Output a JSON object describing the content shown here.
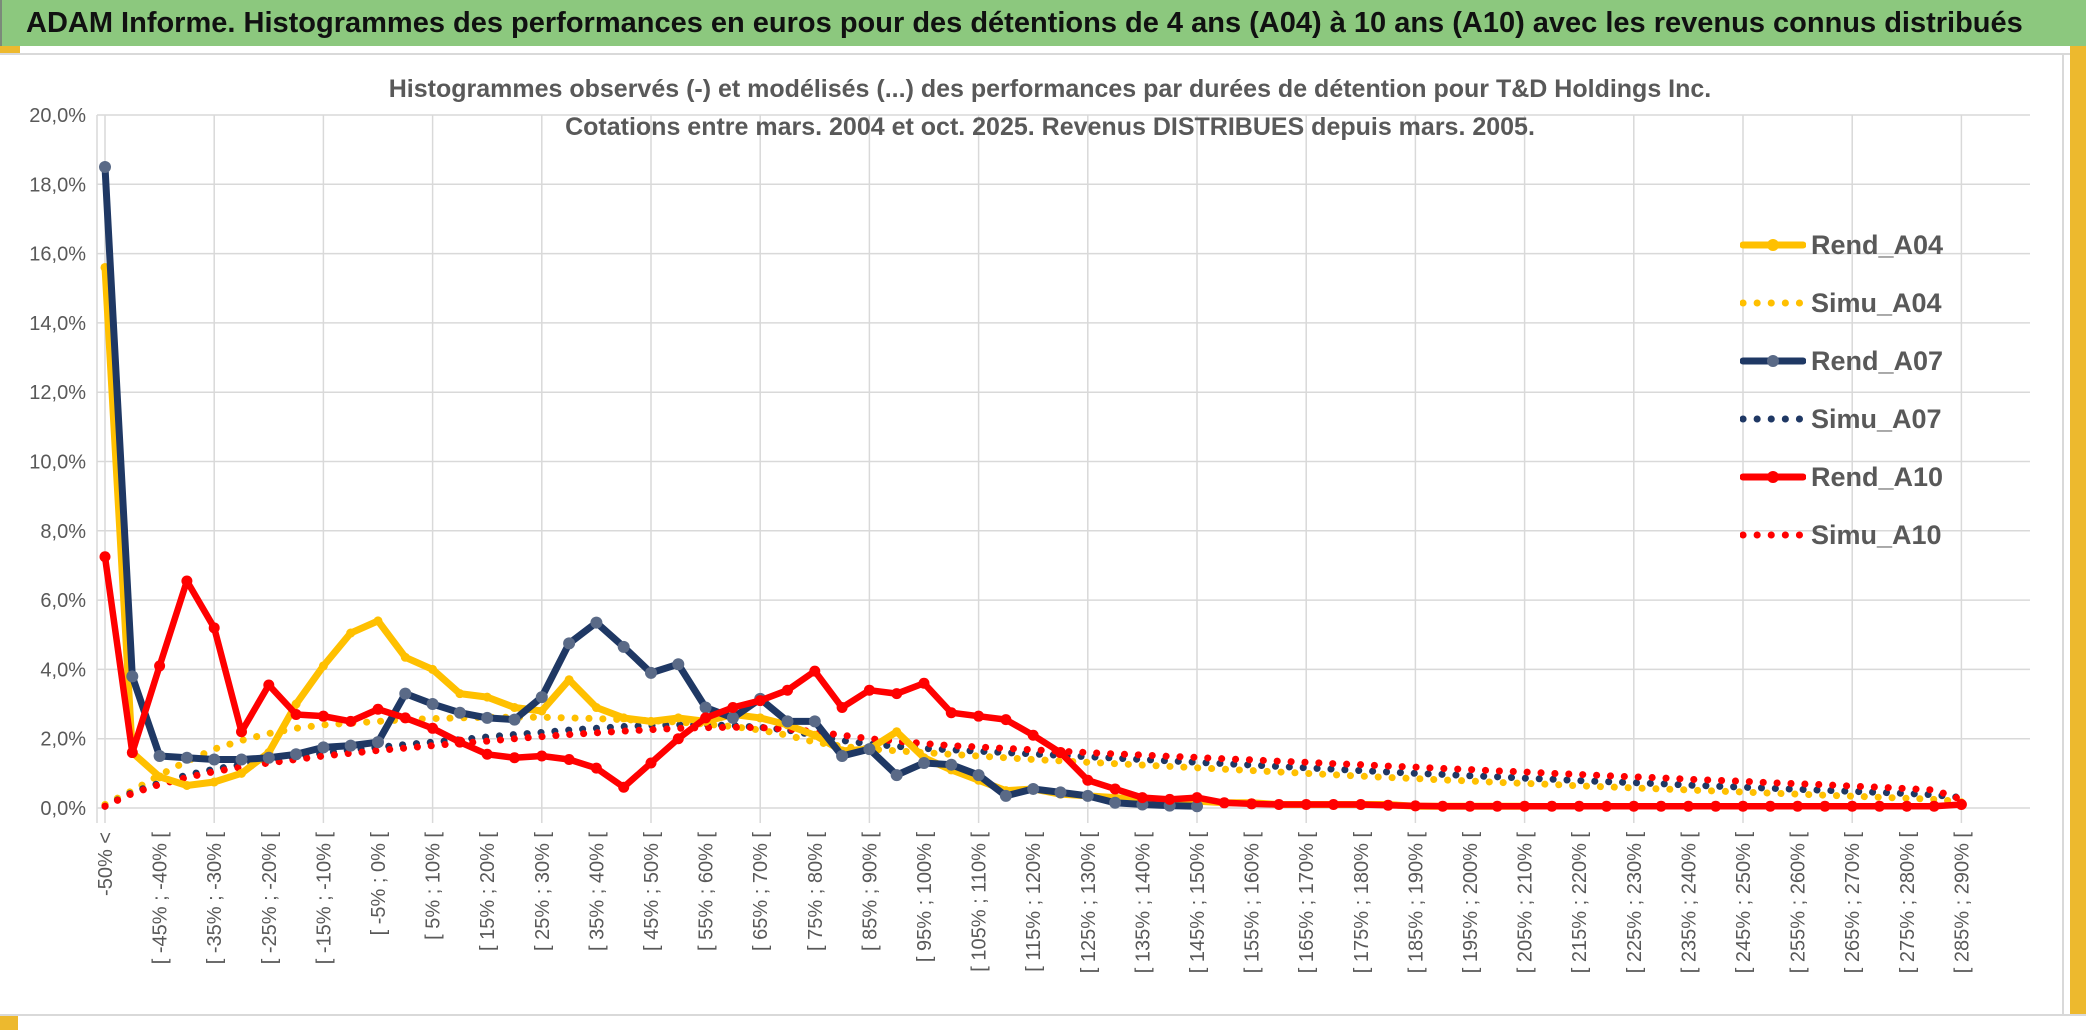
{
  "header": {
    "title": "ADAM Informe. Histogrammes des performances en euros pour des détentions de 4 ans (A04) à 10 ans (A10) avec les revenus connus distribués"
  },
  "chart": {
    "title_line1": "Histogrammes observés (-) et modélisés (...) des performances par durées de détention pour T&D Holdings Inc.",
    "title_line2": "Cotations entre mars. 2004 et oct. 2025. Revenus DISTRIBUES depuis mars. 2005.",
    "accent_color": "#EDB92E",
    "header_green": "#8CC87E",
    "grid_color": "#D9D9D9",
    "text_color": "#595959"
  },
  "chart_data": {
    "type": "line",
    "title": "Histogrammes observés (-) et modélisés (...) des performances par durées de détention pour T&D Holdings Inc. Cotations entre mars. 2004 et oct. 2025. Revenus DISTRIBUES depuis mars. 2005.",
    "grid": true,
    "legend_position": "right",
    "y_axis": {
      "min": 0,
      "max": 20,
      "step": 2,
      "unit": "%",
      "labels": [
        "0,0%",
        "2,0%",
        "4,0%",
        "6,0%",
        "8,0%",
        "10,0%",
        "12,0%",
        "14,0%",
        "16,0%",
        "18,0%",
        "20,0%"
      ]
    },
    "x_axis": {
      "bins_total": 69,
      "label_every_bins": 2,
      "tick_labels": [
        "-50% <",
        "[ -45% ; -40% [",
        "[ -35% ; -30% [",
        "[ -25% ; -20% [",
        "[ -15% ; -10% [",
        "[ -5% ; 0% [",
        "[ 5% ; 10% [",
        "[ 15% ; 20% [",
        "[ 25% ; 30% [",
        "[ 35% ; 40% [",
        "[ 45% ; 50% [",
        "[ 55% ; 60% [",
        "[ 65% ; 70% [",
        "[ 75% ; 80% [",
        "[ 85% ; 90% [",
        "[ 95% ; 100% [",
        "[ 105% ; 110% [",
        "[ 115% ; 120% [",
        "[ 125% ; 130% [",
        "[ 135% ; 140% [",
        "[ 145% ; 150% [",
        "[ 155% ; 160% [",
        "[ 165% ; 170% [",
        "[ 175% ; 180% [",
        "[ 185% ; 190% [",
        "[ 195% ; 200% [",
        "[ 205% ; 210% [",
        "[ 215% ; 220% [",
        "[ 225% ; 230% [",
        "[ 235% ; 240% [",
        "[ 245% ; 250% [",
        "[ 255% ; 260% [",
        "[ 265% ; 270% [",
        "[ 275% ; 280% [",
        "[ 285% ; 290% ["
      ]
    },
    "series": [
      {
        "name": "Rend_A04",
        "style": "solid",
        "color": "#FFC000",
        "marker_color": "#FFC000",
        "width": 7,
        "marker_r": 4.5,
        "values": [
          15.6,
          1.6,
          0.9,
          0.65,
          0.75,
          1.0,
          1.6,
          3.0,
          4.1,
          5.05,
          5.4,
          4.35,
          4.0,
          3.3,
          3.2,
          2.9,
          2.8,
          3.7,
          2.9,
          2.6,
          2.5,
          2.6,
          2.5,
          2.7,
          2.6,
          2.4,
          2.1,
          1.65,
          1.7,
          2.2,
          1.45,
          1.1,
          0.8,
          0.5,
          0.55,
          0.4,
          0.35,
          0.3,
          0.25,
          0.2,
          0.2,
          0.15,
          0.15,
          0.1,
          0.1,
          0.1,
          0.1,
          0.1,
          0.05,
          0.05,
          0.05,
          0.05,
          0.05,
          null,
          null,
          null,
          null,
          null,
          null,
          null,
          null,
          null,
          null,
          null,
          null,
          null,
          null,
          null,
          null
        ]
      },
      {
        "name": "Simu_A04",
        "style": "dotted",
        "color": "#FFC000",
        "width": 7,
        "values": [
          0.1,
          0.5,
          0.95,
          1.35,
          1.7,
          1.95,
          2.15,
          2.3,
          2.4,
          2.45,
          2.5,
          2.55,
          2.58,
          2.6,
          2.62,
          2.62,
          2.62,
          2.6,
          2.58,
          2.55,
          2.52,
          2.48,
          2.42,
          2.35,
          2.25,
          2.1,
          1.9,
          1.78,
          1.7,
          1.65,
          1.6,
          1.55,
          1.5,
          1.45,
          1.4,
          1.36,
          1.32,
          1.28,
          1.24,
          1.2,
          1.16,
          1.12,
          1.08,
          1.04,
          1.0,
          0.96,
          0.92,
          0.88,
          0.85,
          0.81,
          0.78,
          0.74,
          0.71,
          0.68,
          0.64,
          0.61,
          0.58,
          0.55,
          0.52,
          0.49,
          0.46,
          0.43,
          0.4,
          0.37,
          0.34,
          0.31,
          0.28,
          0.25,
          0.18
        ]
      },
      {
        "name": "Rend_A07",
        "style": "solid",
        "color": "#1F3864",
        "marker_color": "#5A6A87",
        "width": 7,
        "marker_r": 6,
        "values": [
          18.5,
          3.8,
          1.5,
          1.45,
          1.4,
          1.4,
          1.45,
          1.55,
          1.75,
          1.8,
          1.9,
          3.3,
          3.0,
          2.75,
          2.6,
          2.55,
          3.2,
          4.75,
          5.35,
          4.65,
          3.9,
          4.15,
          2.9,
          2.6,
          3.15,
          2.5,
          2.5,
          1.5,
          1.7,
          0.95,
          1.3,
          1.25,
          0.95,
          0.35,
          0.55,
          0.45,
          0.35,
          0.15,
          0.1,
          0.07,
          0.05,
          null,
          null,
          null,
          null,
          null,
          null,
          null,
          null,
          null,
          null,
          null,
          null,
          null,
          null,
          null,
          null,
          null,
          null,
          null,
          null,
          null,
          null,
          null,
          null,
          null,
          null,
          null,
          null
        ]
      },
      {
        "name": "Simu_A07",
        "style": "dotted",
        "color": "#1F3864",
        "width": 7,
        "values": [
          0.05,
          0.45,
          0.72,
          0.95,
          1.12,
          1.25,
          1.38,
          1.48,
          1.58,
          1.67,
          1.75,
          1.83,
          1.9,
          1.97,
          2.05,
          2.12,
          2.18,
          2.25,
          2.3,
          2.35,
          2.38,
          2.4,
          2.4,
          2.38,
          2.33,
          2.25,
          2.1,
          1.95,
          1.85,
          1.78,
          1.72,
          1.68,
          1.64,
          1.6,
          1.56,
          1.52,
          1.48,
          1.44,
          1.4,
          1.36,
          1.32,
          1.28,
          1.24,
          1.2,
          1.16,
          1.12,
          1.08,
          1.04,
          1.0,
          0.97,
          0.93,
          0.9,
          0.86,
          0.83,
          0.79,
          0.76,
          0.73,
          0.7,
          0.66,
          0.63,
          0.6,
          0.57,
          0.54,
          0.51,
          0.48,
          0.45,
          0.42,
          0.38,
          0.3
        ]
      },
      {
        "name": "Rend_A10",
        "style": "solid",
        "color": "#FF0000",
        "marker_color": "#FF0000",
        "width": 6.5,
        "marker_r": 5.5,
        "values": [
          7.25,
          1.6,
          4.1,
          6.55,
          5.2,
          2.2,
          3.55,
          2.7,
          2.65,
          2.5,
          2.85,
          2.6,
          2.3,
          1.9,
          1.55,
          1.45,
          1.5,
          1.4,
          1.15,
          0.6,
          1.3,
          2.0,
          2.6,
          2.9,
          3.1,
          3.4,
          3.95,
          2.9,
          3.4,
          3.3,
          3.6,
          2.75,
          2.65,
          2.55,
          2.1,
          1.6,
          0.8,
          0.55,
          0.3,
          0.25,
          0.3,
          0.15,
          0.12,
          0.1,
          0.1,
          0.1,
          0.1,
          0.08,
          0.06,
          0.05,
          0.05,
          0.05,
          0.05,
          0.05,
          0.05,
          0.05,
          0.05,
          0.05,
          0.05,
          0.05,
          0.05,
          0.05,
          0.05,
          0.05,
          0.05,
          0.05,
          0.05,
          0.05,
          0.1
        ]
      },
      {
        "name": "Simu_A10",
        "style": "dotted",
        "color": "#FF0000",
        "width": 7,
        "values": [
          0.05,
          0.42,
          0.68,
          0.88,
          1.05,
          1.18,
          1.3,
          1.4,
          1.5,
          1.58,
          1.66,
          1.73,
          1.8,
          1.87,
          1.93,
          2.0,
          2.06,
          2.12,
          2.17,
          2.22,
          2.26,
          2.3,
          2.32,
          2.33,
          2.32,
          2.28,
          2.2,
          2.1,
          2.0,
          1.93,
          1.86,
          1.8,
          1.76,
          1.72,
          1.68,
          1.64,
          1.6,
          1.56,
          1.53,
          1.49,
          1.46,
          1.42,
          1.39,
          1.35,
          1.32,
          1.28,
          1.25,
          1.21,
          1.18,
          1.14,
          1.11,
          1.07,
          1.04,
          1.0,
          0.97,
          0.93,
          0.9,
          0.87,
          0.83,
          0.8,
          0.77,
          0.73,
          0.7,
          0.67,
          0.63,
          0.6,
          0.56,
          0.52,
          0.25
        ]
      }
    ],
    "legend": [
      "Rend_A04",
      "Simu_A04",
      "Rend_A07",
      "Simu_A07",
      "Rend_A10",
      "Simu_A10"
    ]
  }
}
